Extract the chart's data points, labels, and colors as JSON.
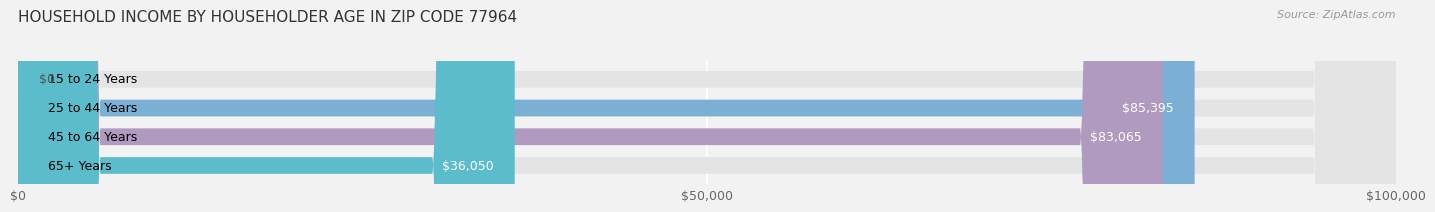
{
  "title": "HOUSEHOLD INCOME BY HOUSEHOLDER AGE IN ZIP CODE 77964",
  "source": "Source: ZipAtlas.com",
  "categories": [
    "15 to 24 Years",
    "25 to 44 Years",
    "45 to 64 Years",
    "65+ Years"
  ],
  "values": [
    0,
    85395,
    83065,
    36050
  ],
  "bar_colors": [
    "#f08080",
    "#7bafd4",
    "#b09ac0",
    "#5bbccc"
  ],
  "background_color": "#f2f2f2",
  "bar_bg_color": "#e4e4e4",
  "xlim": [
    0,
    100000
  ],
  "xticks": [
    0,
    50000,
    100000
  ],
  "xtick_labels": [
    "$0",
    "$50,000",
    "$100,000"
  ],
  "label_fontsize": 9,
  "title_fontsize": 11,
  "value_labels": [
    "$0",
    "$85,395",
    "$83,065",
    "$36,050"
  ],
  "bar_height": 0.58,
  "value_inside_color": "#ffffff",
  "value_outside_color": "#555555"
}
